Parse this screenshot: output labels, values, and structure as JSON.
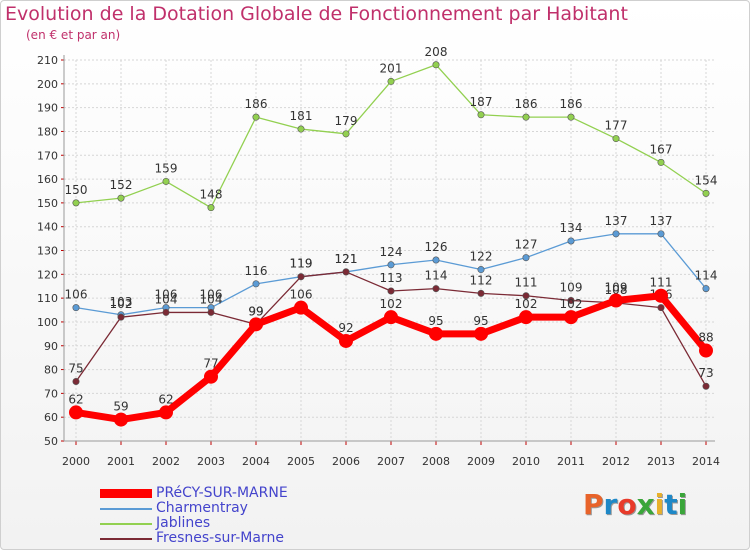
{
  "title": "Evolution de la Dotation Globale de Fonctionnement par Habitant",
  "subtitle": "(en € et par an)",
  "logo_text": "Proxiti",
  "logo_colors": [
    "#e8632a",
    "#1e88c7",
    "#e83a2a",
    "#3aa63a",
    "#e8b02a",
    "#1e88c7",
    "#3aa63a"
  ],
  "chart_data": {
    "type": "line",
    "title": "Evolution de la Dotation Globale de Fonctionnement par Habitant",
    "subtitle": "(en € et par an)",
    "x": [
      2000,
      2001,
      2002,
      2003,
      2004,
      2005,
      2006,
      2007,
      2008,
      2009,
      2010,
      2011,
      2012,
      2013,
      2014
    ],
    "ylim": [
      50,
      210
    ],
    "yticks": [
      50,
      60,
      70,
      80,
      90,
      100,
      110,
      120,
      130,
      140,
      150,
      160,
      170,
      180,
      190,
      200,
      210
    ],
    "grid": true,
    "series": [
      {
        "name": "Charmentray",
        "color": "#5b9bd5",
        "values": [
          106,
          103,
          106,
          106,
          116,
          119,
          121,
          124,
          126,
          122,
          127,
          134,
          137,
          137,
          114
        ]
      },
      {
        "name": "Jablines",
        "color": "#92d050",
        "values": [
          150,
          152,
          159,
          148,
          186,
          181,
          179,
          201,
          208,
          187,
          186,
          186,
          177,
          167,
          154
        ]
      },
      {
        "name": "Fresnes-sur-Marne",
        "color": "#7b2a35",
        "values": [
          75,
          102,
          104,
          104,
          99,
          119,
          121,
          113,
          114,
          112,
          111,
          109,
          108,
          106,
          73
        ]
      },
      {
        "name": "PRéCY-SUR-MARNE",
        "color": "#ff0000",
        "values": [
          62,
          59,
          62,
          77,
          99,
          106,
          92,
          102,
          95,
          95,
          102,
          102,
          109,
          111,
          88
        ]
      }
    ],
    "legend": [
      "PRéCY-SUR-MARNE",
      "Charmentray",
      "Jablines",
      "Fresnes-sur-Marne"
    ]
  }
}
